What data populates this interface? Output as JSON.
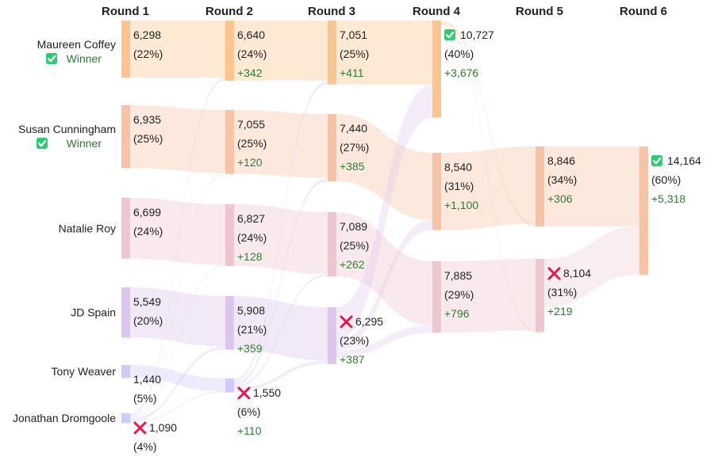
{
  "chart_data": {
    "type": "sankey",
    "title": "",
    "rounds": [
      "Round 1",
      "Round 2",
      "Round 3",
      "Round 4",
      "Round 5",
      "Round 6"
    ],
    "winner_text": "Winner",
    "colors": {
      "Maureen Coffey": "#fcc48e",
      "Susan Cunningham": "#f6c3a6",
      "Natalie Roy": "#eec6d0",
      "JD Spain": "#dcc6ec",
      "Tony Weaver": "#cfcafb",
      "Jonathan Dromgoole": "#c8cdfb",
      "winner_text": "#2e7d32",
      "winner_check": "#2ecc71",
      "eliminated_x": "#e8174b"
    },
    "candidates": [
      {
        "name": "Maureen Coffey",
        "winner": true
      },
      {
        "name": "Susan Cunningham",
        "winner": true
      },
      {
        "name": "Natalie Roy",
        "winner": false
      },
      {
        "name": "JD Spain",
        "winner": false
      },
      {
        "name": "Tony Weaver",
        "winner": false
      },
      {
        "name": "Jonathan Dromgoole",
        "winner": false
      }
    ],
    "results": [
      [
        {
          "candidate": "Maureen Coffey",
          "value": 6298,
          "label": "6,298",
          "pct": "(22%)"
        },
        {
          "candidate": "Susan Cunningham",
          "value": 6935,
          "label": "6,935",
          "pct": "(25%)"
        },
        {
          "candidate": "Natalie Roy",
          "value": 6699,
          "label": "6,699",
          "pct": "(24%)"
        },
        {
          "candidate": "JD Spain",
          "value": 5549,
          "label": "5,549",
          "pct": "(20%)"
        },
        {
          "candidate": "Tony Weaver",
          "value": 1440,
          "label": "1,440",
          "pct": "(5%)"
        },
        {
          "candidate": "Jonathan Dromgoole",
          "value": 1090,
          "label": "1,090",
          "pct": "(4%)",
          "eliminated": true
        }
      ],
      [
        {
          "candidate": "Maureen Coffey",
          "value": 6640,
          "label": "6,640",
          "pct": "(24%)",
          "gain": "+342"
        },
        {
          "candidate": "Susan Cunningham",
          "value": 7055,
          "label": "7,055",
          "pct": "(25%)",
          "gain": "+120"
        },
        {
          "candidate": "Natalie Roy",
          "value": 6827,
          "label": "6,827",
          "pct": "(24%)",
          "gain": "+128"
        },
        {
          "candidate": "JD Spain",
          "value": 5908,
          "label": "5,908",
          "pct": "(21%)",
          "gain": "+359"
        },
        {
          "candidate": "Tony Weaver",
          "value": 1550,
          "label": "1,550",
          "pct": "(6%)",
          "gain": "+110",
          "eliminated": true
        }
      ],
      [
        {
          "candidate": "Maureen Coffey",
          "value": 7051,
          "label": "7,051",
          "pct": "(25%)",
          "gain": "+411"
        },
        {
          "candidate": "Susan Cunningham",
          "value": 7440,
          "label": "7,440",
          "pct": "(27%)",
          "gain": "+385"
        },
        {
          "candidate": "Natalie Roy",
          "value": 7089,
          "label": "7,089",
          "pct": "(25%)",
          "gain": "+262"
        },
        {
          "candidate": "JD Spain",
          "value": 6295,
          "label": "6,295",
          "pct": "(23%)",
          "gain": "+387",
          "eliminated": true
        }
      ],
      [
        {
          "candidate": "Maureen Coffey",
          "value": 10727,
          "label": "10,727",
          "pct": "(40%)",
          "gain": "+3,676",
          "elected": true
        },
        {
          "candidate": "Susan Cunningham",
          "value": 8540,
          "label": "8,540",
          "pct": "(31%)",
          "gain": "+1,100"
        },
        {
          "candidate": "Natalie Roy",
          "value": 7885,
          "label": "7,885",
          "pct": "(29%)",
          "gain": "+796"
        }
      ],
      [
        {
          "candidate": "Susan Cunningham",
          "value": 8846,
          "label": "8,846",
          "pct": "(34%)",
          "gain": "+306"
        },
        {
          "candidate": "Natalie Roy",
          "value": 8104,
          "label": "8,104",
          "pct": "(31%)",
          "gain": "+219",
          "eliminated": true
        }
      ],
      [
        {
          "candidate": "Susan Cunningham",
          "value": 14164,
          "label": "14,164",
          "pct": "(60%)",
          "gain": "+5,318",
          "elected": true
        }
      ]
    ]
  }
}
